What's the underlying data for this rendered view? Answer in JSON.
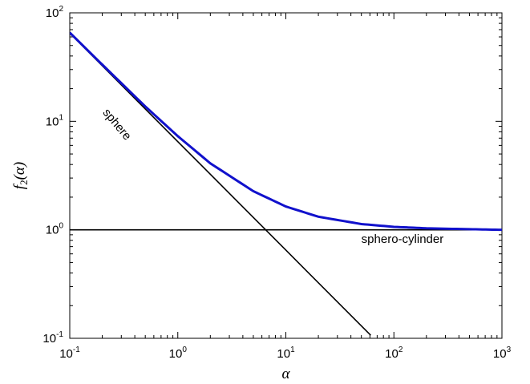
{
  "chart_data": {
    "type": "line",
    "xlabel": "α",
    "ylabel": "f2(α)",
    "ylabel_parts": {
      "base": "f",
      "sub": "2",
      "arg": "(α)"
    },
    "xscale": "log",
    "yscale": "log",
    "xlim": [
      0.1,
      1000
    ],
    "ylim": [
      0.1,
      100
    ],
    "x_ticks": [
      {
        "value": 0.1,
        "base": "10",
        "exp": "-1"
      },
      {
        "value": 1,
        "base": "10",
        "exp": "0"
      },
      {
        "value": 10,
        "base": "10",
        "exp": "1"
      },
      {
        "value": 100,
        "base": "10",
        "exp": "2"
      },
      {
        "value": 1000,
        "base": "10",
        "exp": "3"
      }
    ],
    "y_ticks": [
      {
        "value": 0.1,
        "base": "10",
        "exp": "-1"
      },
      {
        "value": 1,
        "base": "10",
        "exp": "0"
      },
      {
        "value": 10,
        "base": "10",
        "exp": "1"
      },
      {
        "value": 100,
        "base": "10",
        "exp": "2"
      }
    ],
    "grid": false,
    "series": [
      {
        "color": "#1111cc",
        "x": [
          0.1,
          0.2,
          0.5,
          1,
          2,
          5,
          10,
          20,
          50,
          100,
          200,
          500,
          1000
        ],
        "y": [
          65.7,
          33.3,
          13.7,
          7.3,
          4.1,
          2.27,
          1.64,
          1.32,
          1.13,
          1.065,
          1.033,
          1.013,
          1.0
        ]
      },
      {
        "color": "#000000",
        "x": [
          0.1,
          1,
          10,
          61
        ],
        "y": [
          65,
          6.5,
          0.65,
          0.1066
        ]
      },
      {
        "color": "#000000",
        "x": [
          0.1,
          1000
        ],
        "y": [
          1,
          1
        ]
      }
    ],
    "annotations": [
      {
        "text": "sphere",
        "x": 0.2,
        "y": 12,
        "angle": 50
      },
      {
        "text": "sphero-cylinder",
        "x": 50,
        "y": 0.76,
        "angle": 0
      }
    ]
  }
}
